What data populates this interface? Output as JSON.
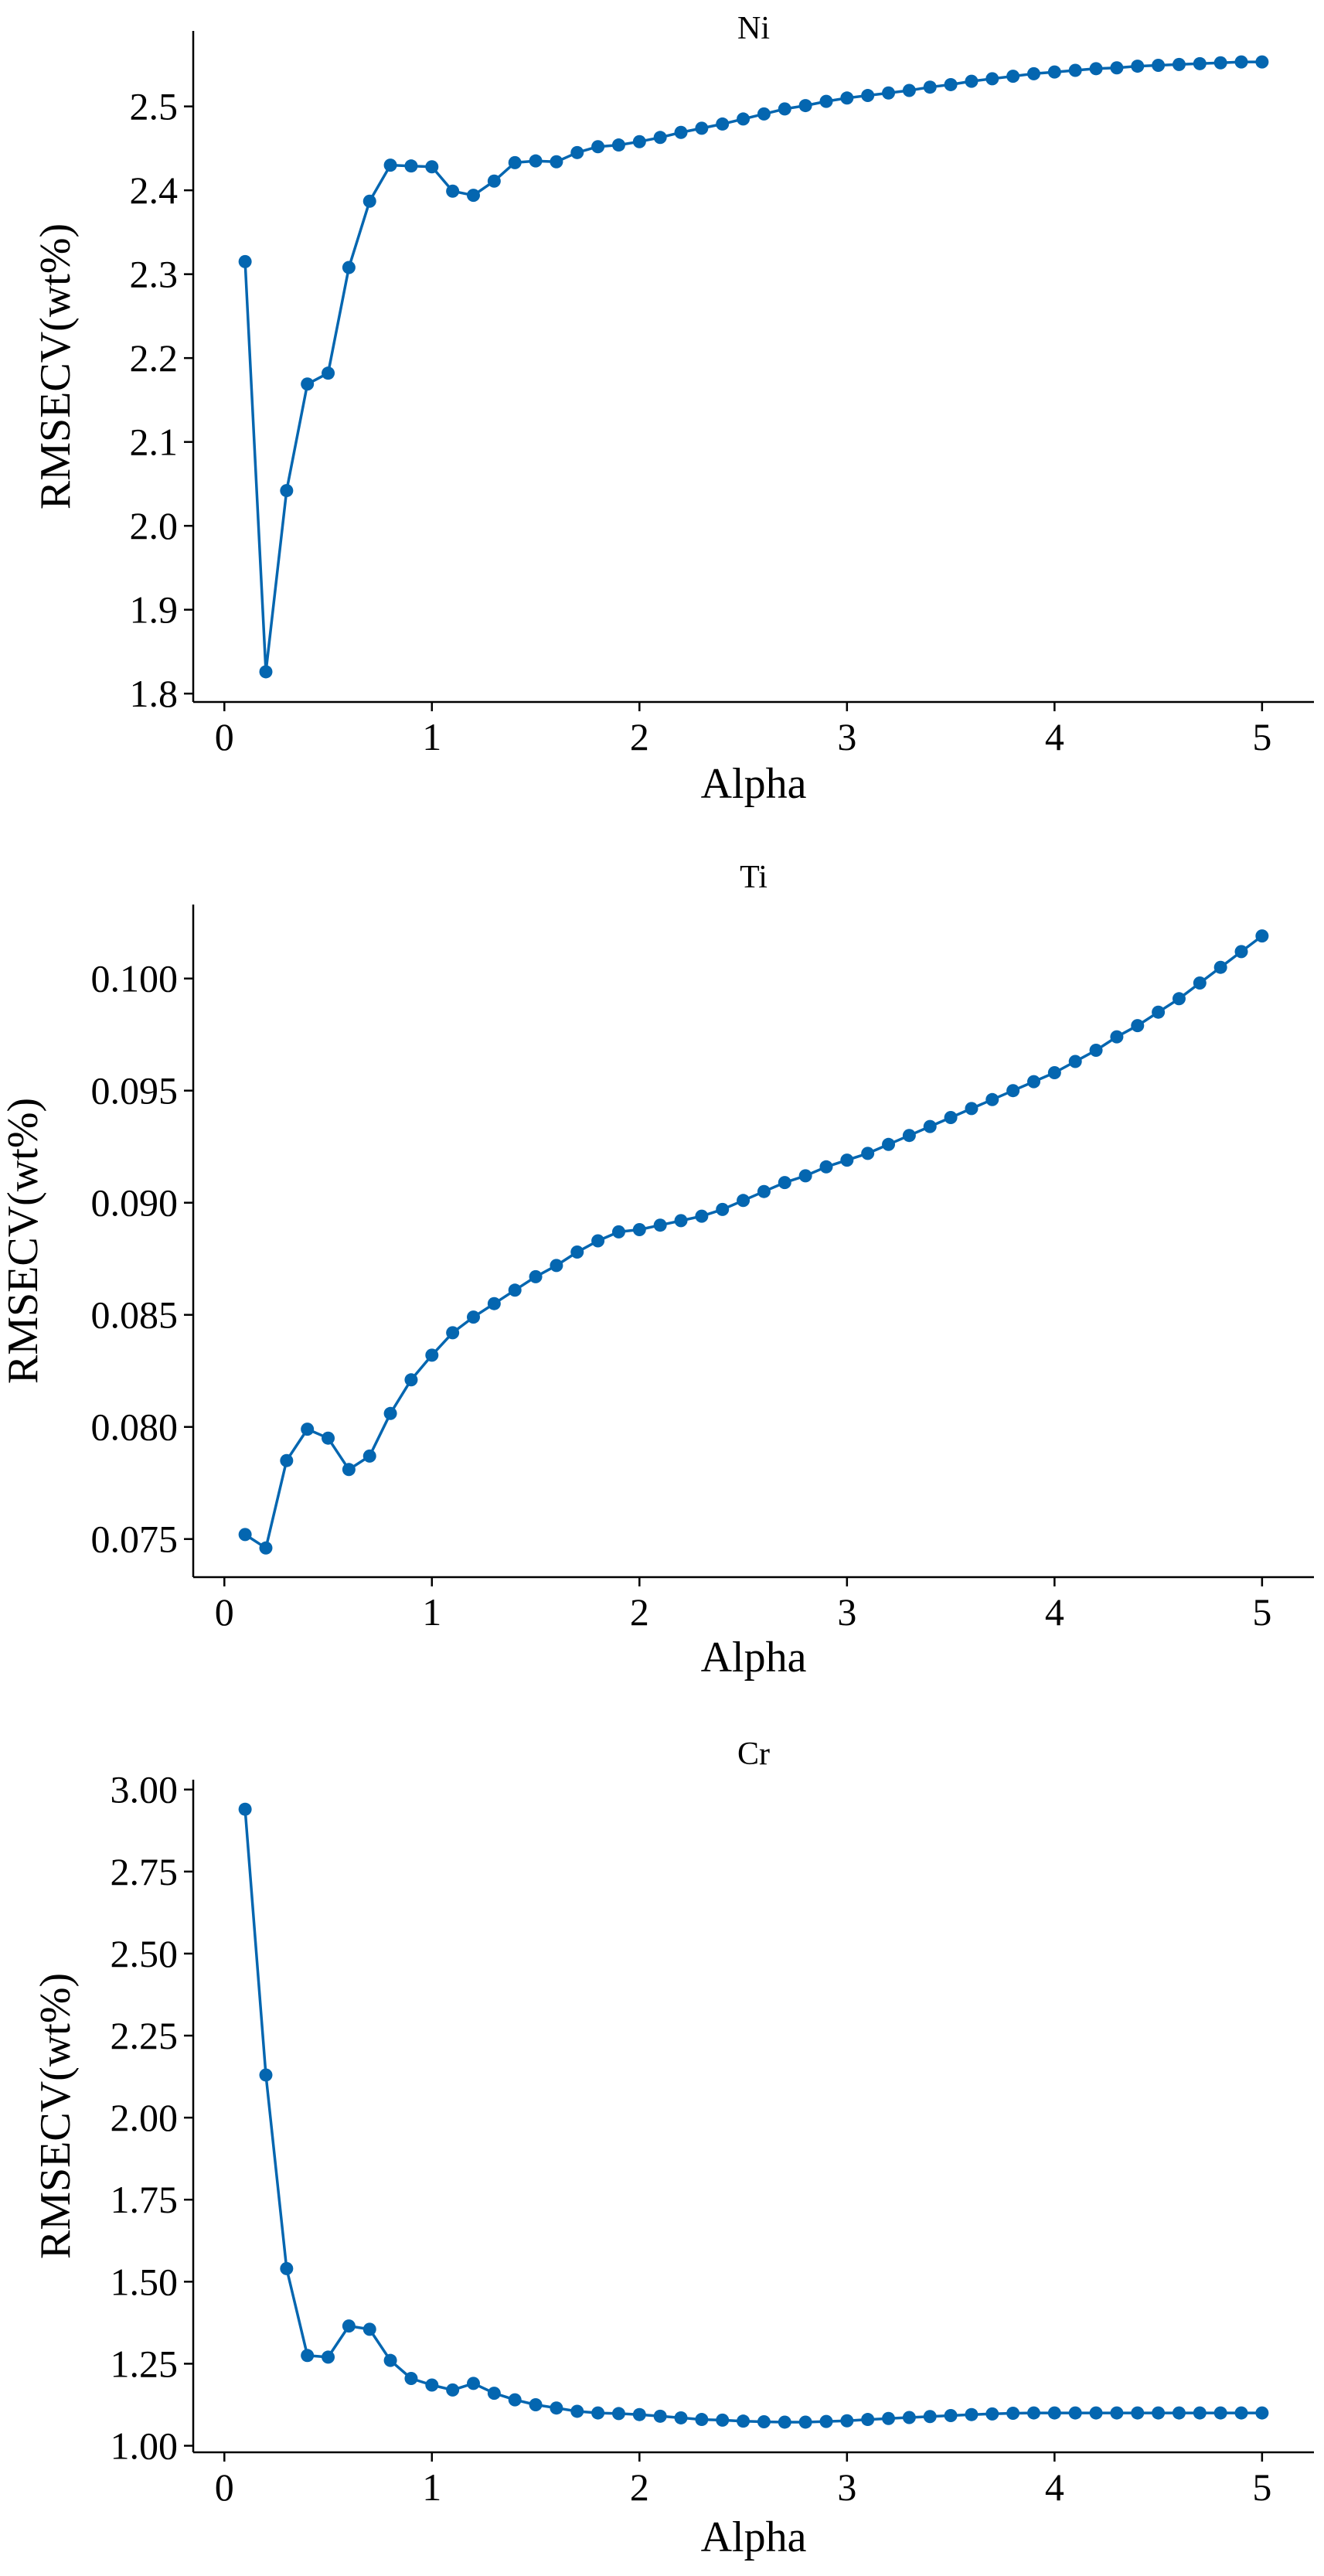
{
  "figure": {
    "series_color": "#0466b0"
  },
  "chart_data": [
    {
      "type": "line",
      "title": "Ni",
      "xlabel": "Alpha",
      "ylabel": "RMSECV(wt%)",
      "xlim": [
        -0.15,
        5.25
      ],
      "ylim": [
        1.79,
        2.59
      ],
      "xticks": [
        0,
        1,
        2,
        3,
        4,
        5
      ],
      "xtick_labels": [
        "0",
        "1",
        "2",
        "3",
        "4",
        "5"
      ],
      "yticks": [
        1.8,
        1.9,
        2.0,
        2.1,
        2.2,
        2.3,
        2.4,
        2.5
      ],
      "ytick_labels": [
        "1.8",
        "1.9",
        "2.0",
        "2.1",
        "2.2",
        "2.3",
        "2.4",
        "2.5"
      ],
      "grid": false,
      "legend": "none",
      "x": [
        0.1,
        0.2,
        0.3,
        0.4,
        0.5,
        0.6,
        0.7,
        0.8,
        0.9,
        1.0,
        1.1,
        1.2,
        1.3,
        1.4,
        1.5,
        1.6,
        1.7,
        1.8,
        1.9,
        2.0,
        2.1,
        2.2,
        2.3,
        2.4,
        2.5,
        2.6,
        2.7,
        2.8,
        2.9,
        3.0,
        3.1,
        3.2,
        3.3,
        3.4,
        3.5,
        3.6,
        3.7,
        3.8,
        3.9,
        4.0,
        4.1,
        4.2,
        4.3,
        4.4,
        4.5,
        4.6,
        4.7,
        4.8,
        4.9,
        5.0
      ],
      "y": [
        2.315,
        1.826,
        2.042,
        2.169,
        2.182,
        2.308,
        2.387,
        2.43,
        2.429,
        2.428,
        2.399,
        2.394,
        2.411,
        2.433,
        2.435,
        2.434,
        2.445,
        2.452,
        2.454,
        2.458,
        2.463,
        2.469,
        2.474,
        2.479,
        2.485,
        2.491,
        2.497,
        2.501,
        2.506,
        2.51,
        2.513,
        2.516,
        2.519,
        2.523,
        2.526,
        2.53,
        2.533,
        2.536,
        2.539,
        2.541,
        2.543,
        2.545,
        2.546,
        2.548,
        2.549,
        2.55,
        2.551,
        2.552,
        2.553,
        2.553
      ]
    },
    {
      "type": "line",
      "title": "Ti",
      "xlabel": "Alpha",
      "ylabel": "RMSECV(wt%)",
      "xlim": [
        -0.15,
        5.25
      ],
      "ylim": [
        0.0733,
        0.1033
      ],
      "xticks": [
        0,
        1,
        2,
        3,
        4,
        5
      ],
      "xtick_labels": [
        "0",
        "1",
        "2",
        "3",
        "4",
        "5"
      ],
      "yticks": [
        0.075,
        0.08,
        0.085,
        0.09,
        0.095,
        0.1
      ],
      "ytick_labels": [
        "0.075",
        "0.080",
        "0.085",
        "0.090",
        "0.095",
        "0.100"
      ],
      "grid": false,
      "legend": "none",
      "x": [
        0.1,
        0.2,
        0.3,
        0.4,
        0.5,
        0.6,
        0.7,
        0.8,
        0.9,
        1.0,
        1.1,
        1.2,
        1.3,
        1.4,
        1.5,
        1.6,
        1.7,
        1.8,
        1.9,
        2.0,
        2.1,
        2.2,
        2.3,
        2.4,
        2.5,
        2.6,
        2.7,
        2.8,
        2.9,
        3.0,
        3.1,
        3.2,
        3.3,
        3.4,
        3.5,
        3.6,
        3.7,
        3.8,
        3.9,
        4.0,
        4.1,
        4.2,
        4.3,
        4.4,
        4.5,
        4.6,
        4.7,
        4.8,
        4.9,
        5.0
      ],
      "y": [
        0.0752,
        0.0746,
        0.0785,
        0.0799,
        0.0795,
        0.0781,
        0.0787,
        0.0806,
        0.0821,
        0.0832,
        0.0842,
        0.0849,
        0.0855,
        0.0861,
        0.0867,
        0.0872,
        0.0878,
        0.0883,
        0.0887,
        0.0888,
        0.089,
        0.0892,
        0.0894,
        0.0897,
        0.0901,
        0.0905,
        0.0909,
        0.0912,
        0.0916,
        0.0919,
        0.0922,
        0.0926,
        0.093,
        0.0934,
        0.0938,
        0.0942,
        0.0946,
        0.095,
        0.0954,
        0.0958,
        0.0963,
        0.0968,
        0.0974,
        0.0979,
        0.0985,
        0.0991,
        0.0998,
        0.1005,
        0.1012,
        0.1019
      ]
    },
    {
      "type": "line",
      "title": "Cr",
      "xlabel": "Alpha",
      "ylabel": "RMSECV(wt%)",
      "xlim": [
        -0.15,
        5.25
      ],
      "ylim": [
        0.98,
        3.03
      ],
      "xticks": [
        0,
        1,
        2,
        3,
        4,
        5
      ],
      "xtick_labels": [
        "0",
        "1",
        "2",
        "3",
        "4",
        "5"
      ],
      "yticks": [
        1.0,
        1.25,
        1.5,
        1.75,
        2.0,
        2.25,
        2.5,
        2.75,
        3.0
      ],
      "ytick_labels": [
        "1.00",
        "1.25",
        "1.50",
        "1.75",
        "2.00",
        "2.25",
        "2.50",
        "2.75",
        "3.00"
      ],
      "grid": false,
      "legend": "none",
      "x": [
        0.1,
        0.2,
        0.3,
        0.4,
        0.5,
        0.6,
        0.7,
        0.8,
        0.9,
        1.0,
        1.1,
        1.2,
        1.3,
        1.4,
        1.5,
        1.6,
        1.7,
        1.8,
        1.9,
        2.0,
        2.1,
        2.2,
        2.3,
        2.4,
        2.5,
        2.6,
        2.7,
        2.8,
        2.9,
        3.0,
        3.1,
        3.2,
        3.3,
        3.4,
        3.5,
        3.6,
        3.7,
        3.8,
        3.9,
        4.0,
        4.1,
        4.2,
        4.3,
        4.4,
        4.5,
        4.6,
        4.7,
        4.8,
        4.9,
        5.0
      ],
      "y": [
        2.94,
        2.13,
        1.54,
        1.275,
        1.27,
        1.365,
        1.355,
        1.26,
        1.205,
        1.185,
        1.17,
        1.19,
        1.16,
        1.14,
        1.125,
        1.115,
        1.105,
        1.1,
        1.098,
        1.095,
        1.09,
        1.085,
        1.08,
        1.078,
        1.075,
        1.073,
        1.072,
        1.072,
        1.074,
        1.076,
        1.08,
        1.083,
        1.086,
        1.089,
        1.092,
        1.095,
        1.097,
        1.099,
        1.1,
        1.1,
        1.1,
        1.1,
        1.1,
        1.1,
        1.1,
        1.1,
        1.1,
        1.1,
        1.1,
        1.1
      ]
    }
  ]
}
